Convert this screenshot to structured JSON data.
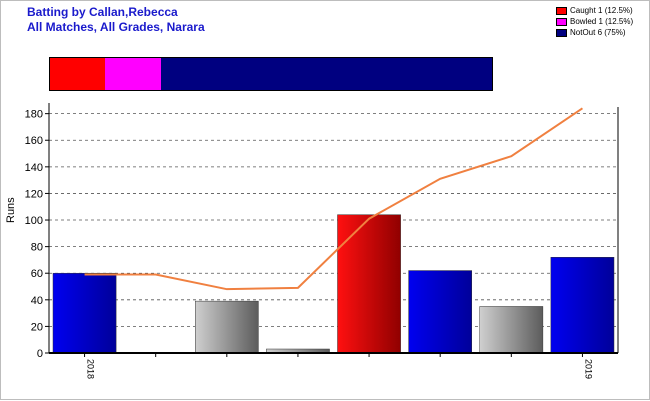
{
  "header": {
    "title_line1": "Batting by Callan,Rebecca",
    "title_line2": "All Matches, All Grades, Narara"
  },
  "legend": [
    {
      "label": "Caught 1 (12.5%)",
      "color": "#ff0000"
    },
    {
      "label": "Bowled 1 (12.5%)",
      "color": "#ff00ff"
    },
    {
      "label": "NotOut 6 (75%)",
      "color": "#000080"
    }
  ],
  "dismissals": [
    {
      "name": "Caught",
      "fraction": 0.125,
      "color": "#ff0000"
    },
    {
      "name": "Bowled",
      "fraction": 0.125,
      "color": "#ff00ff"
    },
    {
      "name": "NotOut",
      "fraction": 0.75,
      "color": "#000080"
    }
  ],
  "chart_data": {
    "type": "bar",
    "ylabel": "Runs",
    "ylim": [
      0,
      185
    ],
    "yticks": [
      0,
      20,
      40,
      60,
      80,
      100,
      120,
      140,
      160,
      180
    ],
    "grid": "horizontal dashed",
    "x_tick_labels": [
      {
        "slot": 0,
        "label": "2018"
      },
      {
        "slot": 7,
        "label": "2019"
      }
    ],
    "bars": [
      {
        "innings": 1,
        "runs": 60,
        "dismissal": "NotOut"
      },
      {
        "innings": 2,
        "runs": 0,
        "dismissal": "DNB"
      },
      {
        "innings": 3,
        "runs": 39,
        "dismissal": "Other"
      },
      {
        "innings": 4,
        "runs": 3,
        "dismissal": "Other"
      },
      {
        "innings": 5,
        "runs": 104,
        "dismissal": "Caught"
      },
      {
        "innings": 6,
        "runs": 62,
        "dismissal": "NotOut"
      },
      {
        "innings": 7,
        "runs": 35,
        "dismissal": "Other"
      },
      {
        "innings": 8,
        "runs": 72,
        "dismissal": "NotOut"
      }
    ],
    "line": {
      "color": "#f08040",
      "values": [
        59,
        59,
        48,
        49,
        101,
        131,
        148,
        184
      ]
    },
    "colors": {
      "NotOut": "#0000d0",
      "Caught": "#e00000",
      "Other": "#a0a0a0"
    }
  }
}
